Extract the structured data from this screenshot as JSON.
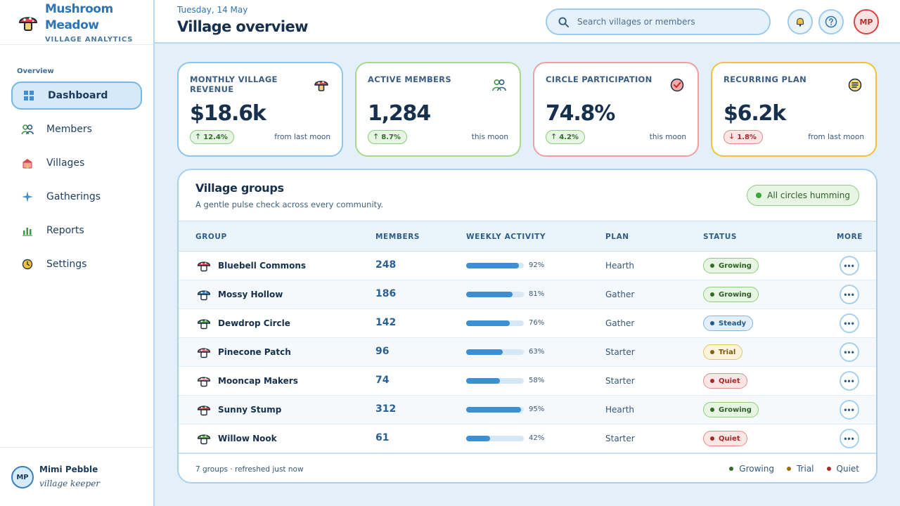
{
  "brand": {
    "name": "Mushroom Meadow",
    "subtitle": "VILLAGE ANALYTICS"
  },
  "sidebar": {
    "section": "Overview",
    "items": [
      {
        "label": "Dashboard",
        "icon": "dashboard-icon",
        "active": true
      },
      {
        "label": "Members",
        "icon": "members-icon"
      },
      {
        "label": "Villages",
        "icon": "villages-icon"
      },
      {
        "label": "Gatherings",
        "icon": "gatherings-icon"
      },
      {
        "label": "Reports",
        "icon": "reports-icon"
      },
      {
        "label": "Settings",
        "icon": "settings-icon"
      }
    ],
    "user": {
      "initials": "MP",
      "name": "Mimi Pebble",
      "role": "village keeper"
    }
  },
  "header": {
    "date": "Tuesday, 14 May",
    "title": "Village overview",
    "search_placeholder": "Search villages or members",
    "avatar_initials": "MP"
  },
  "kpis": [
    {
      "label": "MONTHLY VILLAGE REVENUE",
      "value": "$18.6k",
      "delta": "12.4%",
      "direction": "up",
      "note": "from last moon",
      "border": "#8ec5ee",
      "icon": "mushroom-icon"
    },
    {
      "label": "ACTIVE MEMBERS",
      "value": "1,284",
      "delta": "8.7%",
      "direction": "up",
      "note": "this moon",
      "border": "#a9d98e",
      "icon": "members-icon"
    },
    {
      "label": "CIRCLE PARTICIPATION",
      "value": "74.8%",
      "delta": "4.2%",
      "direction": "up",
      "note": "this moon",
      "border": "#ef9f9f",
      "icon": "check-badge-icon"
    },
    {
      "label": "RECURRING PLAN",
      "value": "$6.2k",
      "delta": "1.8%",
      "direction": "down",
      "note": "from last moon",
      "border": "#f2c23b",
      "icon": "list-badge-icon"
    }
  ],
  "groups": {
    "title": "Village groups",
    "subtitle": "A gentle pulse check across every community.",
    "status_pill": "All circles humming",
    "columns": [
      "GROUP",
      "MEMBERS",
      "WEEKLY ACTIVITY",
      "PLAN",
      "STATUS",
      "MORE"
    ],
    "rows": [
      {
        "name": "Bluebell Commons",
        "members": "248",
        "activity": 92,
        "activity_label": "92%",
        "plan": "Hearth",
        "status": "Growing",
        "status_key": "growing",
        "cap": "#e04848"
      },
      {
        "name": "Mossy Hollow",
        "members": "186",
        "activity": 81,
        "activity_label": "81%",
        "plan": "Gather",
        "status": "Growing",
        "status_key": "growing",
        "cap": "#3b8fd2"
      },
      {
        "name": "Dewdrop Circle",
        "members": "142",
        "activity": 76,
        "activity_label": "76%",
        "plan": "Gather",
        "status": "Steady",
        "status_key": "steady",
        "cap": "#4aa045"
      },
      {
        "name": "Pinecone Patch",
        "members": "96",
        "activity": 63,
        "activity_label": "63%",
        "plan": "Starter",
        "status": "Trial",
        "status_key": "trial",
        "cap": "#e86a6a"
      },
      {
        "name": "Mooncap Makers",
        "members": "74",
        "activity": 58,
        "activity_label": "58%",
        "plan": "Starter",
        "status": "Quiet",
        "status_key": "quiet",
        "cap": "#f09a9a"
      },
      {
        "name": "Sunny Stump",
        "members": "312",
        "activity": 95,
        "activity_label": "95%",
        "plan": "Hearth",
        "status": "Growing",
        "status_key": "growing",
        "cap": "#e04848"
      },
      {
        "name": "Willow Nook",
        "members": "61",
        "activity": 42,
        "activity_label": "42%",
        "plan": "Starter",
        "status": "Quiet",
        "status_key": "quiet",
        "cap": "#6ab24f"
      }
    ],
    "footer": "7 groups · refreshed just now",
    "legend": [
      {
        "label": "Growing",
        "color": "#2e6d24"
      },
      {
        "label": "Trial",
        "color": "#a06a10"
      },
      {
        "label": "Quiet",
        "color": "#a72a2a"
      }
    ]
  }
}
